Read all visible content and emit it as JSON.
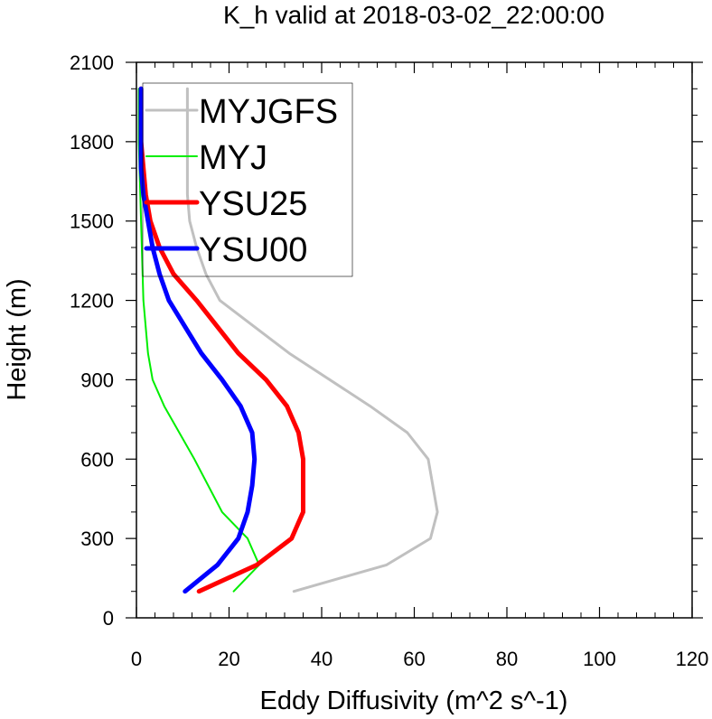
{
  "chart_data": {
    "type": "line",
    "title": "K_h valid at 2018-03-02_22:00:00",
    "xlabel": "Eddy Diffusivity (m^2 s^-1)",
    "ylabel": "Height (m)",
    "xlim": [
      0,
      120
    ],
    "ylim": [
      0,
      2100
    ],
    "xticks": [
      0,
      20,
      40,
      60,
      80,
      100,
      120
    ],
    "yticks": [
      0,
      300,
      600,
      900,
      1200,
      1500,
      1800,
      2100
    ],
    "grid": false,
    "legend_position": "top-left",
    "series": [
      {
        "name": "MYJGFS",
        "color": "#c0c0c0",
        "points": [
          [
            34,
            100
          ],
          [
            54,
            200
          ],
          [
            63.5,
            300
          ],
          [
            65,
            400
          ],
          [
            63,
            600
          ],
          [
            58.5,
            700
          ],
          [
            50.5,
            800
          ],
          [
            33,
            1000
          ],
          [
            18,
            1200
          ],
          [
            15,
            1300
          ],
          [
            13,
            1400
          ],
          [
            11.5,
            1500
          ],
          [
            11,
            1600
          ],
          [
            11,
            1700
          ],
          [
            11,
            1800
          ],
          [
            11,
            1900
          ],
          [
            11,
            2000
          ]
        ]
      },
      {
        "name": "MYJ",
        "color": "#00ee00",
        "points": [
          [
            21,
            100
          ],
          [
            26.5,
            200
          ],
          [
            24,
            300
          ],
          [
            18.5,
            400
          ],
          [
            12.5,
            600
          ],
          [
            6,
            800
          ],
          [
            3.5,
            900
          ],
          [
            2.5,
            1000
          ],
          [
            1.5,
            1200
          ],
          [
            1,
            1500
          ],
          [
            0.5,
            1800
          ],
          [
            0.5,
            2000
          ]
        ]
      },
      {
        "name": "YSU25",
        "color": "#ff0000",
        "points": [
          [
            13.5,
            100
          ],
          [
            26,
            200
          ],
          [
            33.5,
            300
          ],
          [
            36,
            400
          ],
          [
            36,
            500
          ],
          [
            36,
            600
          ],
          [
            35,
            700
          ],
          [
            32.5,
            800
          ],
          [
            28,
            900
          ],
          [
            22,
            1000
          ],
          [
            13,
            1200
          ],
          [
            8,
            1300
          ],
          [
            5,
            1400
          ],
          [
            3,
            1500
          ],
          [
            2,
            1600
          ],
          [
            1.5,
            1700
          ],
          [
            1,
            1800
          ],
          [
            1,
            1900
          ],
          [
            1,
            2000
          ]
        ]
      },
      {
        "name": "YSU00",
        "color": "#0000ff",
        "points": [
          [
            10.5,
            100
          ],
          [
            17.5,
            200
          ],
          [
            22,
            300
          ],
          [
            24,
            400
          ],
          [
            25,
            500
          ],
          [
            25.5,
            600
          ],
          [
            25,
            700
          ],
          [
            22.5,
            800
          ],
          [
            18.5,
            900
          ],
          [
            14,
            1000
          ],
          [
            7,
            1200
          ],
          [
            5,
            1300
          ],
          [
            3.5,
            1400
          ],
          [
            2.5,
            1500
          ],
          [
            1.5,
            1600
          ],
          [
            1,
            1700
          ],
          [
            1,
            1800
          ],
          [
            1,
            1900
          ],
          [
            1,
            2000
          ]
        ]
      }
    ]
  }
}
